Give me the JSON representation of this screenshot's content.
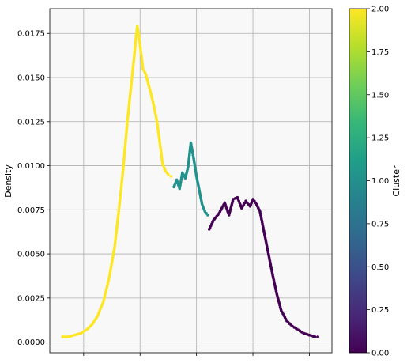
{
  "chart_data": {
    "type": "scatter",
    "title": "",
    "xlabel": "",
    "ylabel": "Density",
    "xlim": [
      0,
      10
    ],
    "ylim": [
      -0.0006,
      0.0189
    ],
    "x_ticks": [
      1.2,
      3.2,
      5.2,
      7.2,
      9.2
    ],
    "x_tick_labels": [
      "",
      "",
      "",
      "",
      ""
    ],
    "y_ticks": [
      0.0,
      0.0025,
      0.005,
      0.0075,
      0.01,
      0.0125,
      0.015,
      0.0175
    ],
    "y_tick_labels": [
      "0.0000",
      "0.0025",
      "0.0050",
      "0.0075",
      "0.0100",
      "0.0125",
      "0.0150",
      "0.0175"
    ],
    "grid": true,
    "point_color_by": "cluster",
    "colorbar": {
      "label": "Cluster",
      "range": [
        0.0,
        2.0
      ],
      "ticks": [
        0.0,
        0.25,
        0.5,
        0.75,
        1.0,
        1.25,
        1.5,
        1.75,
        2.0
      ],
      "tick_labels": [
        "0.00",
        "0.25",
        "0.50",
        "0.75",
        "1.00",
        "1.25",
        "1.50",
        "1.75",
        "2.00"
      ],
      "colormap": [
        "#440154",
        "#482878",
        "#3e4989",
        "#31688e",
        "#26828e",
        "#1f9e89",
        "#35b779",
        "#6ece58",
        "#b5de2b",
        "#fde725"
      ]
    },
    "series": [
      {
        "cluster": 2,
        "color": "#fde725",
        "x": [
          0.45,
          0.65,
          1.1,
          1.3,
          1.5,
          1.7,
          1.9,
          2.1,
          2.3,
          2.45,
          2.6,
          2.75,
          2.9,
          3.0,
          3.05,
          3.1,
          3.15,
          3.2,
          3.25,
          3.3,
          3.4,
          3.5,
          3.6,
          3.7,
          3.8,
          3.9,
          4.0,
          4.1,
          4.2,
          4.3
        ],
        "y": [
          0.0003,
          0.0003,
          0.0005,
          0.0007,
          0.001,
          0.0015,
          0.0023,
          0.0036,
          0.0054,
          0.0075,
          0.0098,
          0.0125,
          0.0148,
          0.0163,
          0.0172,
          0.0179,
          0.0175,
          0.0168,
          0.0162,
          0.0155,
          0.0152,
          0.0146,
          0.014,
          0.0133,
          0.0125,
          0.0113,
          0.0101,
          0.0097,
          0.0095,
          0.0094
        ]
      },
      {
        "cluster": 1,
        "color": "#21918c",
        "x": [
          4.4,
          4.5,
          4.6,
          4.7,
          4.8,
          4.9,
          5.0,
          5.1,
          5.2,
          5.3,
          5.4,
          5.5,
          5.6
        ],
        "y": [
          0.0088,
          0.0092,
          0.0087,
          0.0096,
          0.0093,
          0.0099,
          0.0113,
          0.0104,
          0.0094,
          0.0086,
          0.0078,
          0.0074,
          0.0072
        ]
      },
      {
        "cluster": 0,
        "color": "#440154",
        "x": [
          5.65,
          5.8,
          6.0,
          6.2,
          6.35,
          6.5,
          6.65,
          6.8,
          6.95,
          7.1,
          7.2,
          7.3,
          7.45,
          7.6,
          7.75,
          7.9,
          8.05,
          8.2,
          8.4,
          8.6,
          8.8,
          9.0,
          9.2,
          9.4,
          9.5
        ],
        "y": [
          0.0064,
          0.0069,
          0.0073,
          0.0079,
          0.0072,
          0.0081,
          0.0082,
          0.0076,
          0.008,
          0.0077,
          0.0081,
          0.0079,
          0.0074,
          0.0062,
          0.005,
          0.0038,
          0.0027,
          0.0018,
          0.0012,
          0.0009,
          0.0007,
          0.0005,
          0.0004,
          0.0003,
          0.0003
        ]
      }
    ]
  }
}
